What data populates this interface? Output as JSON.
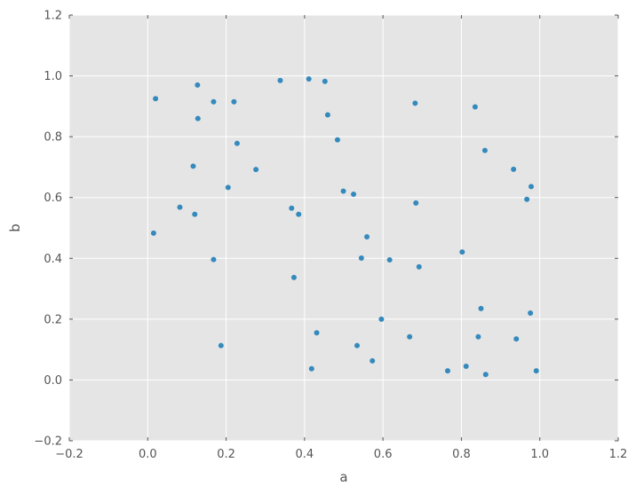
{
  "chart_data": {
    "type": "scatter",
    "xlabel": "a",
    "ylabel": "b",
    "xlim": [
      -0.2,
      1.2
    ],
    "ylim": [
      -0.2,
      1.2
    ],
    "xticks": [
      -0.2,
      0.0,
      0.2,
      0.4,
      0.6,
      0.8,
      1.0,
      1.2
    ],
    "yticks": [
      -0.2,
      0.0,
      0.2,
      0.4,
      0.6,
      0.8,
      1.0,
      1.2
    ],
    "xtick_labels": [
      "−0.2",
      "0.0",
      "0.2",
      "0.4",
      "0.6",
      "0.8",
      "1.0",
      "1.2"
    ],
    "ytick_labels": [
      "−0.2",
      "0.0",
      "0.2",
      "0.4",
      "0.6",
      "0.8",
      "1.0",
      "1.2"
    ],
    "grid": true,
    "colors": {
      "background": "#e5e5e5",
      "grid": "#ffffff",
      "point": "#348abd",
      "text": "#555555"
    },
    "series": [
      {
        "x": [
          0.02,
          0.127,
          0.168,
          0.128,
          0.22,
          0.338,
          0.411,
          0.452,
          0.459,
          0.682,
          0.835,
          0.228,
          0.484,
          0.86,
          0.116,
          0.276,
          0.933,
          0.978,
          0.205,
          0.499,
          0.525,
          0.967,
          0.082,
          0.367,
          0.684,
          0.12,
          0.385,
          0.015,
          0.559,
          0.802,
          0.168,
          0.545,
          0.617,
          0.692,
          0.373,
          0.85,
          0.976,
          0.596,
          0.431,
          0.668,
          0.843,
          0.94,
          0.187,
          0.534,
          0.573,
          0.418,
          0.765,
          0.812,
          0.991,
          0.862
        ],
        "y": [
          0.925,
          0.97,
          0.915,
          0.86,
          0.915,
          0.985,
          0.99,
          0.982,
          0.872,
          0.91,
          0.898,
          0.778,
          0.79,
          0.755,
          0.703,
          0.692,
          0.693,
          0.636,
          0.633,
          0.621,
          0.611,
          0.594,
          0.568,
          0.565,
          0.582,
          0.545,
          0.545,
          0.483,
          0.471,
          0.421,
          0.396,
          0.401,
          0.395,
          0.372,
          0.337,
          0.235,
          0.22,
          0.2,
          0.155,
          0.142,
          0.142,
          0.135,
          0.113,
          0.113,
          0.063,
          0.037,
          0.03,
          0.045,
          0.03,
          0.018
        ]
      }
    ]
  }
}
